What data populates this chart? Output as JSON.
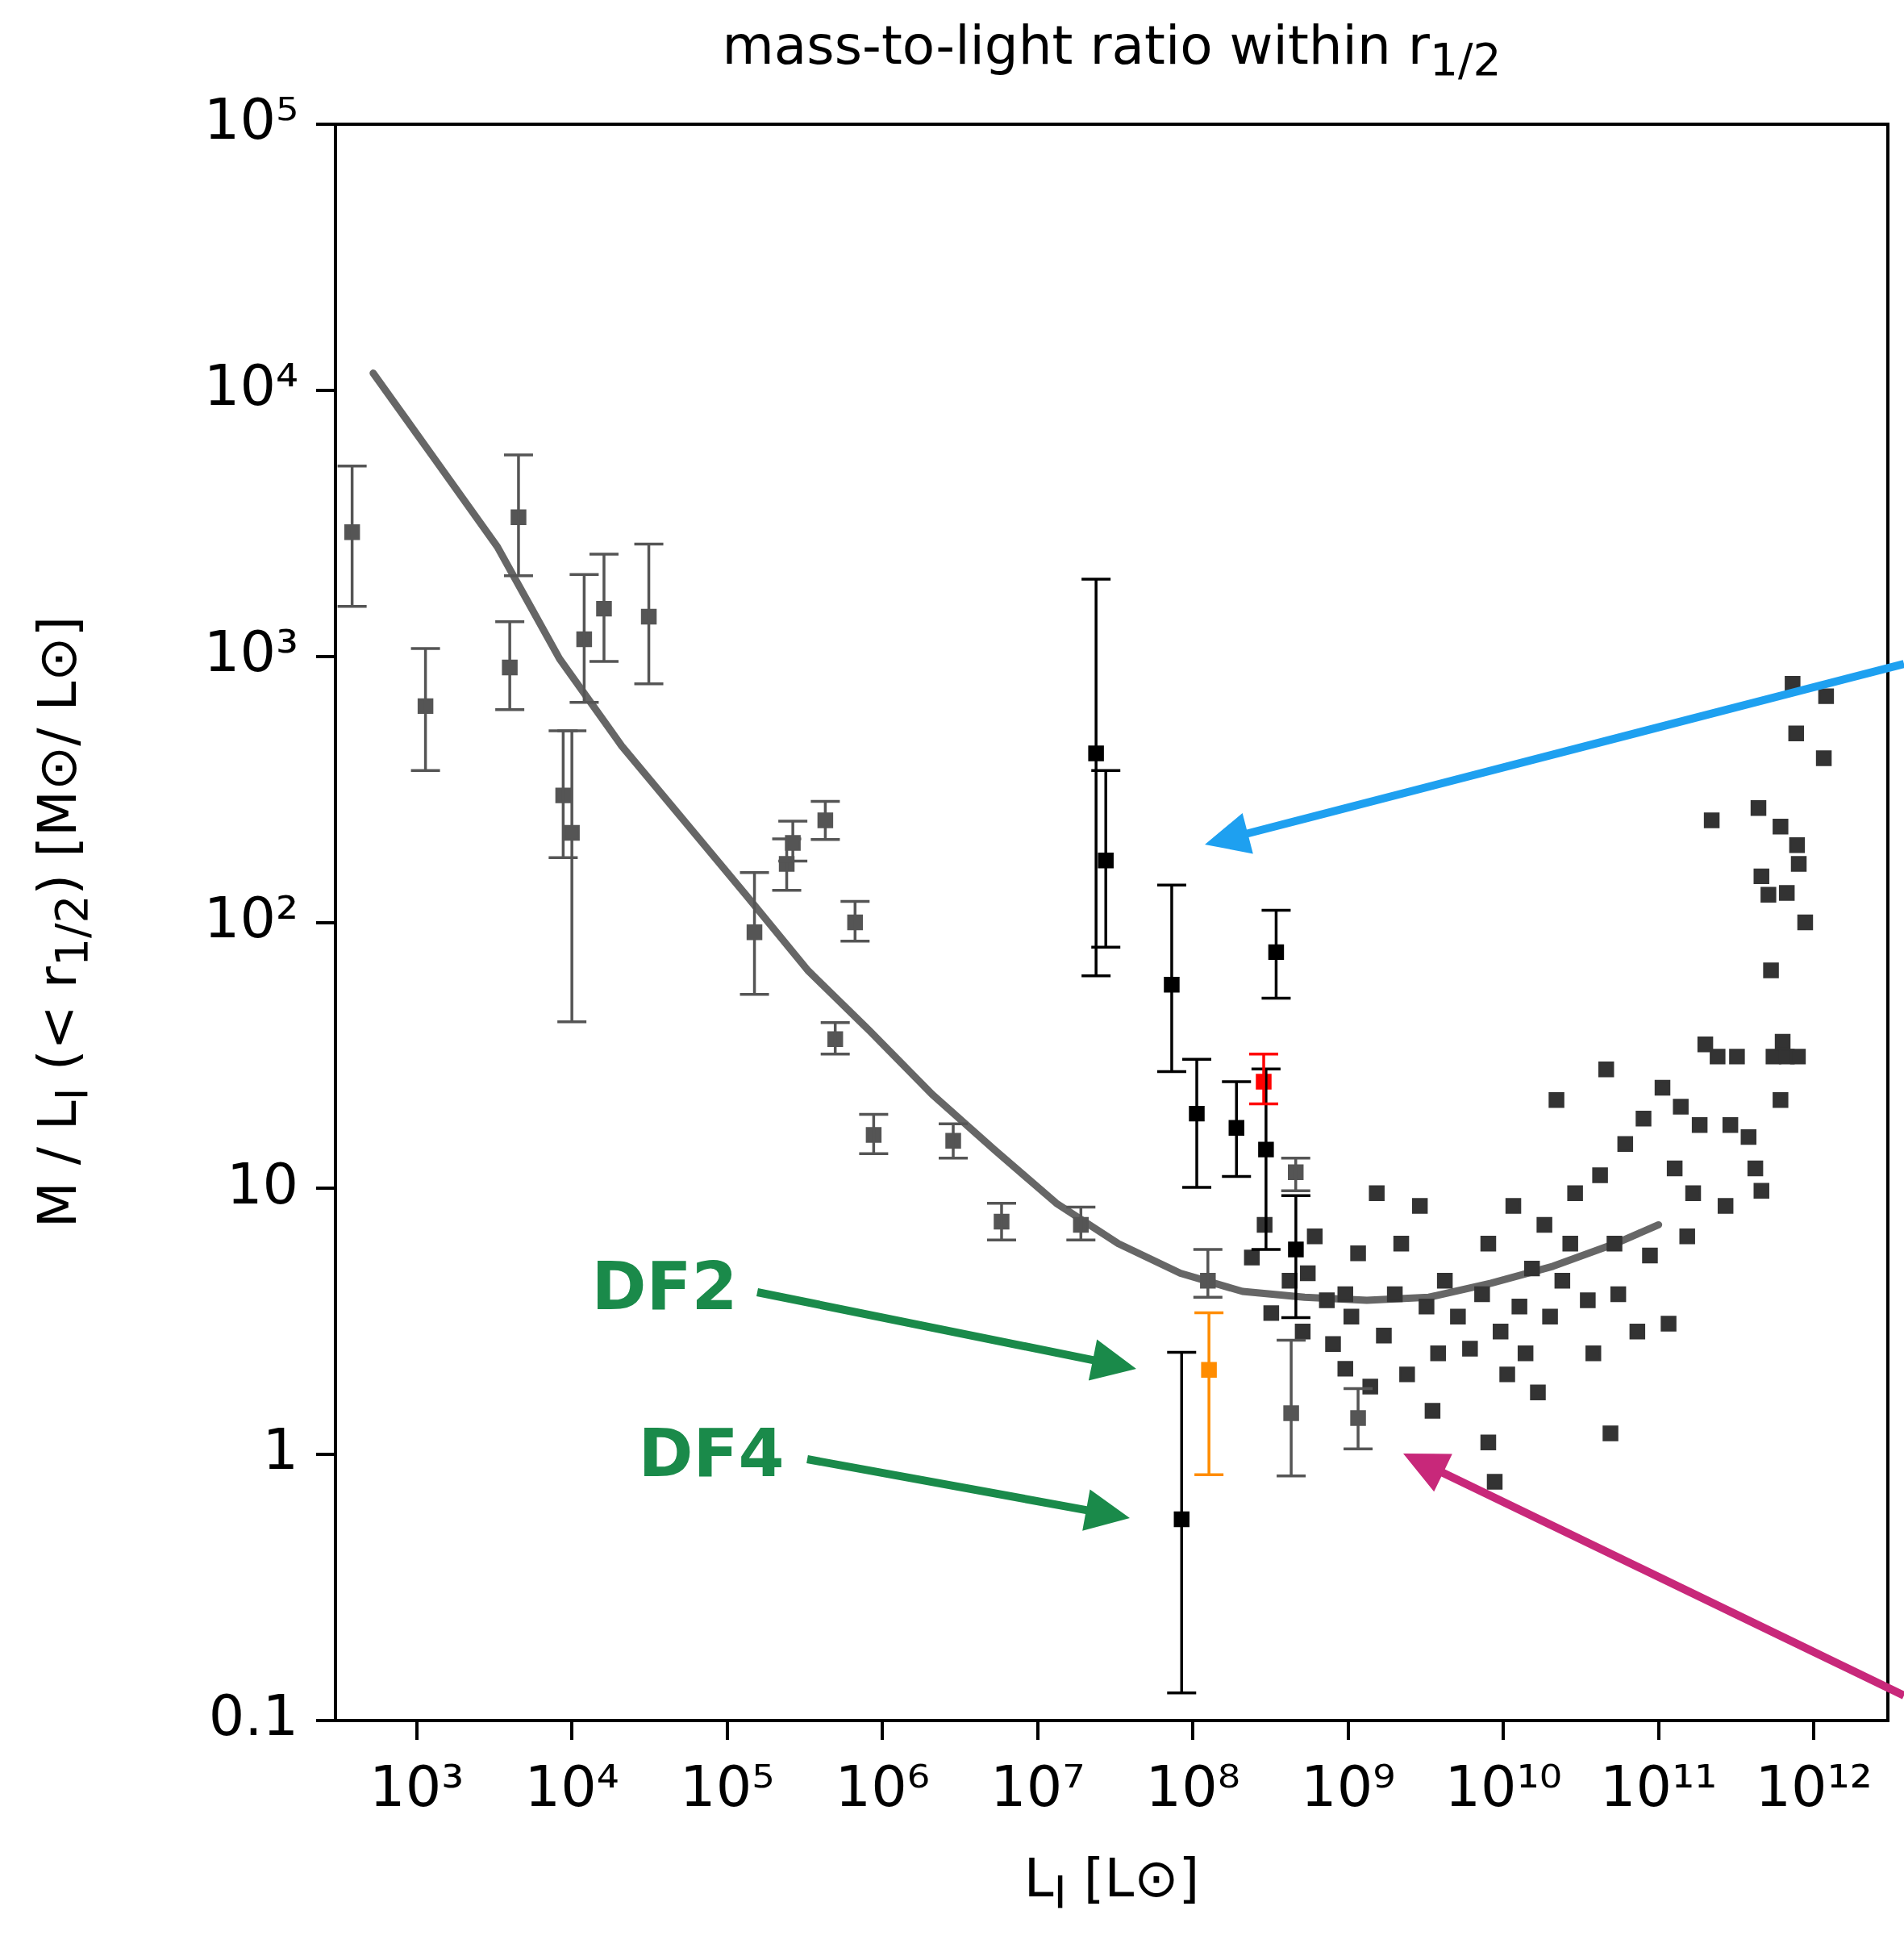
{
  "chart_data": {
    "type": "scatter",
    "title": "mass-to-light ratio within r$_{1/2}$",
    "xlabel": "L$_{I}$  [L⊙]",
    "ylabel": "M / L$_{I}$ (< r$_{1/2}$)  [M⊙/ L⊙]",
    "log": "xy",
    "grid": false,
    "legend": false,
    "marker": "square",
    "xlim": [
      300,
      3000000000000.0
    ],
    "ylim": [
      0.1,
      100000
    ],
    "xticks": [
      {
        "value": 1000,
        "label": "10³"
      },
      {
        "value": 10000,
        "label": "10⁴"
      },
      {
        "value": 100000,
        "label": "10⁵"
      },
      {
        "value": 1000000,
        "label": "10⁶"
      },
      {
        "value": 10000000,
        "label": "10⁷"
      },
      {
        "value": 100000000,
        "label": "10⁸"
      },
      {
        "value": 1000000000,
        "label": "10⁹"
      },
      {
        "value": 10000000000,
        "label": "10¹⁰"
      },
      {
        "value": 100000000000,
        "label": "10¹¹"
      },
      {
        "value": 1000000000000,
        "label": "10¹²"
      }
    ],
    "yticks": [
      0.1,
      1,
      10,
      {
        "value": 100,
        "label": "10²"
      },
      {
        "value": 1000,
        "label": "10³"
      },
      {
        "value": 10000,
        "label": "10⁴"
      },
      {
        "value": 100000,
        "label": "10⁵"
      }
    ],
    "annotations": [
      "DF2",
      "DF4"
    ],
    "series": [
      {
        "type": "line",
        "color": "#666666",
        "marker": "none",
        "x": [
          525,
          1320,
          3310,
          8320,
          20900,
          52500,
          132000,
          331000,
          832000,
          2090000,
          5250000,
          13200000,
          33100000,
          83200000,
          209000000,
          525000000,
          1320000000,
          3310000000,
          8320000000,
          20900000000,
          52500000000,
          100000000000
        ],
        "values": [
          11600,
          5470,
          2580,
          980,
          461,
          242,
          127,
          66,
          39,
          22.6,
          14,
          8.8,
          6.2,
          4.8,
          4.1,
          3.9,
          3.8,
          3.9,
          4.4,
          5.1,
          6.2,
          7.3
        ]
      },
      {
        "color": "#555555",
        "x": [
          384,
          1140,
          3980,
          4530,
          8790,
          10000,
          12000,
          16100,
          31300,
          150000,
          242000,
          265000,
          429000,
          497000,
          667000,
          879000,
          2860000,
          5860000,
          19000000,
          125000000,
          460000000,
          430000000,
          1160000000
        ],
        "values": [
          2930,
          650,
          908,
          3330,
          300,
          217,
          1160,
          1510,
          1410,
          91.8,
          166,
          199,
          242,
          36.4,
          100,
          15.9,
          15.1,
          7.5,
          7.3,
          4.5,
          11.5,
          1.43,
          1.37
        ],
        "errors": [
          [
            1540,
            5190
          ],
          [
            372,
            1070
          ],
          [
            630,
            1350
          ],
          [
            2010,
            5710
          ],
          [
            175,
            525
          ],
          [
            42.3,
            525
          ],
          [
            671,
            2030
          ],
          [
            957,
            2420
          ],
          [
            788,
            2640
          ],
          [
            53.6,
            154
          ],
          [
            132,
            206
          ],
          [
            170,
            240
          ],
          [
            205,
            285
          ],
          [
            32,
            42
          ],
          [
            85,
            120
          ],
          [
            13.5,
            19
          ],
          [
            13,
            17.5
          ],
          [
            6.4,
            8.8
          ],
          [
            6.4,
            8.5
          ],
          [
            3.9,
            5.9
          ],
          [
            9.8,
            13
          ],
          [
            0.83,
            2.69
          ],
          [
            1.05,
            1.77
          ]
        ]
      },
      {
        "color": "#333333",
        "x": [
          240000000.0,
          290000000.0,
          320000000.0,
          420000000.0,
          510000000.0,
          610000000.0,
          730000000.0,
          800000000.0,
          960000000.0,
          1160000000.0,
          1390000000.0,
          1530000000.0,
          2000000000.0,
          2400000000.0,
          2900000000.0,
          3200000000.0,
          3500000000.0,
          4200000000.0,
          5100000000.0,
          6100000000.0,
          7300000000.0,
          8000000000.0,
          8800000000.0,
          9600000000.0,
          10600000000.0,
          11600000000.0,
          12700000000.0,
          15300000000.0,
          16700000000.0,
          20000000000.0,
          22000000000.0,
          24000000000.0,
          29000000000.0,
          35000000000.0,
          38000000000.0,
          42000000000.0,
          46000000000.0,
          49000000000.0,
          55000000000.0,
          61000000000.0,
          73000000000.0,
          80000000000.0,
          88000000000.0,
          106000000000.0,
          116000000000.0,
          127000000000.0,
          139000000000.0,
          153000000000.0,
          184000000000.0,
          200000000000.0,
          240000000000.0,
          270000000000.0,
          320000000000.0,
          380000000000.0,
          420000000000.0,
          460000000000.0,
          550000000000.0,
          610000000000.0,
          670000000000.0,
          220000000000.0,
          440000000000.0,
          460000000000.0,
          510000000000.0,
          530000000000.0,
          610000000000.0,
          670000000000.0,
          730000000000.0,
          770000000000.0,
          800000000000.0,
          880000000000.0,
          1160000000000.0,
          1200000000000.0,
          780000000000.0,
          630000000000.0,
          790000000000.0,
          290000000000.0,
          167000000000.0,
          2200000000.0,
          1050000000.0,
          8000000000.0,
          27000000000.0,
          13900000000.0,
          3800000000.0,
          1700000000.0,
          960000000.0,
          550000000.0,
          52000000000.0,
          18400000000.0
        ],
        "values": [
          5.5,
          7.3,
          3.4,
          4.5,
          2.9,
          6.6,
          3.8,
          2.6,
          2.1,
          5.7,
          1.8,
          9.6,
          4.0,
          2.0,
          8.6,
          3.6,
          1.46,
          4.5,
          3.3,
          2.5,
          4.0,
          1.11,
          0.79,
          2.9,
          2.0,
          8.6,
          3.6,
          5.0,
          1.71,
          3.3,
          21.5,
          4.5,
          9.6,
          3.8,
          2.4,
          11.2,
          28,
          1.2,
          4.0,
          14.7,
          2.9,
          18.3,
          5.6,
          23.9,
          3.1,
          11.9,
          20.3,
          6.6,
          17.3,
          34.8,
          31.3,
          8.6,
          31.3,
          15.6,
          11.9,
          9.8,
          31.3,
          21.5,
          31.3,
          242,
          269,
          149,
          127,
          66,
          229,
          129,
          789,
          513,
          166,
          100,
          414,
          708,
          195,
          35.6,
          31.3,
          17.3,
          9.6,
          6.2,
          3.3,
          6.2,
          6.2,
          2.4,
          2.4,
          2.8,
          4.0,
          4.8,
          6.2,
          7.3
        ]
      },
      {
        "color": "#000000",
        "x": [
          23800000.0,
          27500000.0,
          73100000.0,
          106000000.0,
          191000000.0,
          296000000.0,
          344000000.0,
          461000000.0,
          84700000.0
        ],
        "values": [
          432,
          171,
          58.3,
          19.1,
          16.9,
          14,
          77.3,
          5.9,
          0.571
        ],
        "errors": [
          [
            63,
            1950
          ],
          [
            80.7,
            372
          ],
          [
            27.5,
            138
          ],
          [
            10.1,
            30.6
          ],
          [
            11.1,
            25.2
          ],
          [
            5.9,
            28.1
          ],
          [
            51.9,
            111
          ],
          [
            3.27,
            9.4
          ],
          [
            0.127,
            2.42
          ]
        ]
      },
      {
        "color": "#ff0000",
        "x": [
          286000000.0
        ],
        "values": [
          25.2
        ],
        "errors": [
          [
            20.8,
            32
          ]
        ]
      },
      {
        "color": "#ff8c00",
        "x": [
          127000000.0
        ],
        "values": [
          2.08
        ],
        "errors": [
          [
            0.84,
            3.41
          ]
        ]
      }
    ]
  }
}
